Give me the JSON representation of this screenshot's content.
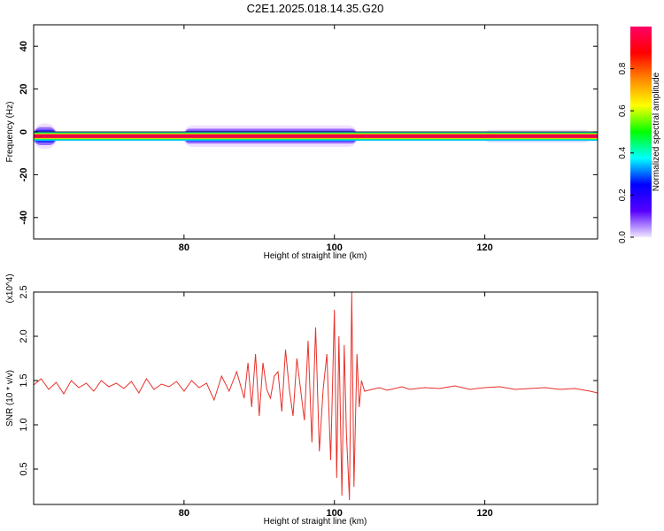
{
  "page_title": "C2E1.2025.018.14.35.G20",
  "chart_data": [
    {
      "type": "heatmap",
      "title": "C2E1.2025.018.14.35.G20",
      "xlabel": "Height of straight line (km)",
      "ylabel": "Frequency (Hz)",
      "xlim": [
        60,
        135
      ],
      "ylim": [
        -50,
        50
      ],
      "x_ticks": [
        80,
        100,
        120
      ],
      "y_ticks": [
        -40,
        -20,
        0,
        20,
        40
      ],
      "colorbar": {
        "label": "Normalized spectral amplitude",
        "range": [
          0,
          1
        ],
        "ticks": [
          "0.0",
          "0.2",
          "0.4",
          "0.6",
          "0.8"
        ],
        "colors": [
          "#f0e8ff",
          "#5500ff",
          "#0000ff",
          "#00ffff",
          "#00ff00",
          "#ffff00",
          "#ff8800",
          "#ff0000",
          "#ff0066"
        ]
      },
      "baseline_frequency_hz": -2,
      "center_line_frequency_hz": 0,
      "spectral_band": {
        "x_start": 60,
        "x_end": 135,
        "center_hz": -2,
        "core_halfwidth_hz": 1,
        "spread_regions": [
          {
            "x": [
              60,
              63
            ],
            "halfwidth_hz": 6
          },
          {
            "x": [
              80,
              103
            ],
            "halfwidth_hz": 5
          },
          {
            "x": [
              120,
              134
            ],
            "halfwidth_hz": 3
          }
        ]
      }
    },
    {
      "type": "line",
      "xlabel": "Height of straight line (km)",
      "ylabel": "SNR (10 * v/v)",
      "y_scale_label": "(x10^4)",
      "xlim": [
        60,
        135
      ],
      "ylim": [
        0.1,
        2.5
      ],
      "x_ticks": [
        80,
        100,
        120
      ],
      "y_ticks": [
        "0.5",
        "1.0",
        "1.5",
        "2.0",
        "2.5"
      ],
      "color": "#e8312a",
      "series": [
        {
          "x": [
            60,
            61,
            62,
            63,
            64,
            65,
            66,
            67,
            68,
            69,
            70,
            71,
            72,
            73,
            74,
            75,
            76,
            77,
            78,
            79,
            80,
            81,
            82,
            83,
            84,
            85,
            86,
            87,
            88,
            88.5,
            89,
            89.5,
            90,
            90.5,
            91,
            91.5,
            92,
            92.5,
            93,
            93.5,
            94,
            94.5,
            95,
            95.5,
            96,
            96.5,
            97,
            97.5,
            98,
            98.5,
            99,
            99.5,
            100,
            100.3,
            100.6,
            101,
            101.3,
            101.6,
            102,
            102.3,
            102.6,
            103,
            103.3,
            103.6,
            104,
            105,
            106,
            107,
            108,
            109,
            110,
            112,
            114,
            116,
            118,
            120,
            122,
            124,
            126,
            128,
            130,
            132,
            134,
            135
          ],
          "values": [
            1.45,
            1.52,
            1.4,
            1.48,
            1.35,
            1.5,
            1.42,
            1.47,
            1.38,
            1.5,
            1.43,
            1.47,
            1.41,
            1.49,
            1.36,
            1.52,
            1.4,
            1.46,
            1.43,
            1.49,
            1.38,
            1.5,
            1.42,
            1.47,
            1.28,
            1.55,
            1.38,
            1.6,
            1.3,
            1.7,
            1.2,
            1.8,
            1.1,
            1.7,
            1.4,
            1.3,
            1.55,
            1.6,
            1.15,
            1.85,
            1.4,
            1.1,
            1.75,
            1.4,
            1.05,
            1.95,
            0.8,
            2.1,
            0.7,
            1.4,
            1.8,
            0.6,
            2.3,
            0.4,
            2.0,
            0.2,
            1.9,
            0.9,
            0.15,
            2.5,
            0.3,
            1.8,
            1.2,
            1.5,
            1.38,
            1.4,
            1.42,
            1.39,
            1.41,
            1.43,
            1.4,
            1.42,
            1.41,
            1.44,
            1.4,
            1.42,
            1.43,
            1.4,
            1.41,
            1.42,
            1.4,
            1.41,
            1.38,
            1.36
          ]
        }
      ]
    }
  ]
}
